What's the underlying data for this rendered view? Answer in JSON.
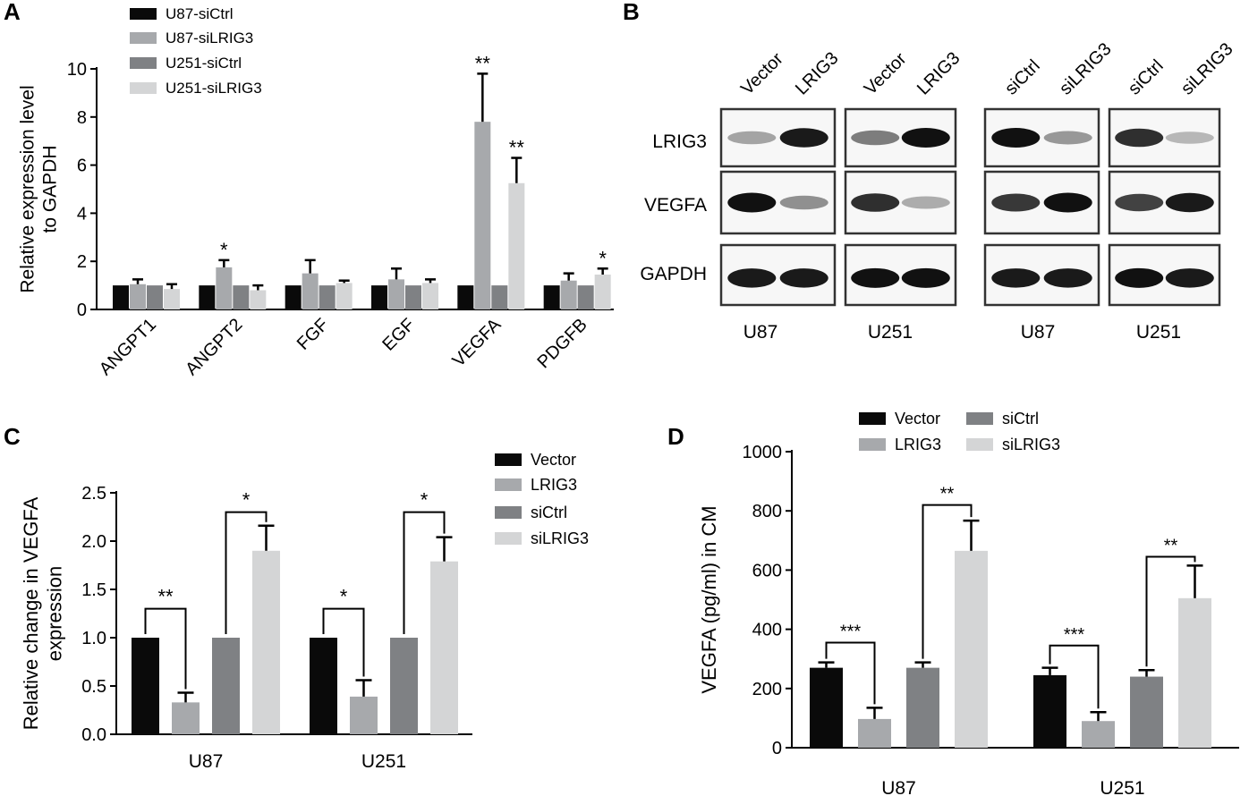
{
  "colors": {
    "black": "#0a0a0a",
    "gray": "#a7a9ac",
    "darkgray": "#7f8184",
    "lightgray": "#d4d5d6"
  },
  "panels": [
    {
      "id": "A",
      "label": "A"
    },
    {
      "id": "B",
      "label": "B"
    },
    {
      "id": "C",
      "label": "C"
    },
    {
      "id": "D",
      "label": "D"
    }
  ],
  "blot": {
    "lanes": [
      [
        "Vector",
        "LRIG3"
      ],
      [
        "Vector",
        "LRIG3"
      ],
      [
        "siCtrl",
        "siLRIG3"
      ],
      [
        "siCtrl",
        "siLRIG3"
      ]
    ],
    "rows": [
      "LRIG3",
      "VEGFA",
      "GAPDH"
    ],
    "groups": [
      "U87",
      "U251",
      "U87",
      "U251"
    ],
    "band_intensity": [
      [
        [
          0.25,
          0.95
        ],
        [
          0.45,
          1.0
        ],
        [
          1.0,
          0.3
        ],
        [
          0.85,
          0.15
        ]
      ],
      [
        [
          1.0,
          0.35
        ],
        [
          0.85,
          0.2
        ],
        [
          0.8,
          1.0
        ],
        [
          0.75,
          0.95
        ]
      ],
      [
        [
          0.95,
          0.95
        ],
        [
          1.0,
          1.0
        ],
        [
          0.95,
          0.95
        ],
        [
          1.0,
          0.95
        ]
      ]
    ]
  },
  "chart_data": [
    {
      "panel": "A",
      "type": "bar",
      "ylabel": "Relative expression level\nto GAPDH",
      "ylim": [
        0,
        10
      ],
      "yticks": [
        0,
        2,
        4,
        6,
        8,
        10
      ],
      "categories": [
        "ANGPT1",
        "ANGPT2",
        "FGF",
        "EGF",
        "VEGFA",
        "PDGFB"
      ],
      "series": [
        {
          "name": "U87-siCtrl",
          "color": "#0a0a0a",
          "values": [
            1.0,
            1.0,
            1.0,
            1.0,
            1.0,
            1.0
          ],
          "errors": [
            0,
            0,
            0,
            0,
            0,
            0
          ]
        },
        {
          "name": "U87-siLRIG3",
          "color": "#a7a9ac",
          "values": [
            1.05,
            1.75,
            1.5,
            1.25,
            7.8,
            1.2
          ],
          "errors": [
            0.2,
            0.3,
            0.55,
            0.45,
            2.0,
            0.3
          ]
        },
        {
          "name": "U251-siCtrl",
          "color": "#7f8184",
          "values": [
            1.0,
            1.0,
            1.0,
            1.0,
            1.0,
            1.0
          ],
          "errors": [
            0,
            0,
            0,
            0,
            0,
            0
          ]
        },
        {
          "name": "U251-siLRIG3",
          "color": "#d4d5d6",
          "values": [
            0.85,
            0.8,
            1.1,
            1.1,
            5.25,
            1.45
          ],
          "errors": [
            0.2,
            0.2,
            0.1,
            0.15,
            1.05,
            0.25
          ]
        }
      ],
      "annotations": [
        {
          "category": 1,
          "series": 1,
          "text": "*"
        },
        {
          "category": 4,
          "series": 1,
          "text": "**"
        },
        {
          "category": 4,
          "series": 3,
          "text": "**"
        },
        {
          "category": 5,
          "series": 3,
          "text": "*"
        }
      ],
      "legend_position": "top-left"
    },
    {
      "panel": "C",
      "type": "bar",
      "ylabel": "Relative change in VEGFA\nexpression",
      "ylim": [
        0,
        2.5
      ],
      "yticks": [
        "0.0",
        "0.5",
        "1.0",
        "1.5",
        "2.0",
        "2.5"
      ],
      "categories": [
        "U87",
        "U251"
      ],
      "series": [
        {
          "name": "Vector",
          "color": "#0a0a0a",
          "values": [
            1.0,
            1.0
          ],
          "errors": [
            0,
            0
          ]
        },
        {
          "name": "LRIG3",
          "color": "#a7a9ac",
          "values": [
            0.33,
            0.39
          ],
          "errors": [
            0.1,
            0.17
          ]
        },
        {
          "name": "siCtrl",
          "color": "#7f8184",
          "values": [
            1.0,
            1.0
          ],
          "errors": [
            0,
            0
          ]
        },
        {
          "name": "siLRIG3",
          "color": "#d4d5d6",
          "values": [
            1.9,
            1.79
          ],
          "errors": [
            0.26,
            0.25
          ]
        }
      ],
      "brackets": [
        {
          "category": 0,
          "from": 0,
          "to": 1,
          "y": 1.3,
          "text": "**"
        },
        {
          "category": 0,
          "from": 2,
          "to": 3,
          "y": 2.3,
          "text": "*"
        },
        {
          "category": 1,
          "from": 0,
          "to": 1,
          "y": 1.3,
          "text": "*"
        },
        {
          "category": 1,
          "from": 2,
          "to": 3,
          "y": 2.3,
          "text": "*"
        }
      ],
      "legend_position": "right"
    },
    {
      "panel": "D",
      "type": "bar",
      "ylabel": "VEGFA (pg/ml) in CM",
      "ylim": [
        0,
        1000
      ],
      "yticks": [
        0,
        200,
        400,
        600,
        800,
        1000
      ],
      "categories": [
        "U87",
        "U251"
      ],
      "series": [
        {
          "name": "Vector",
          "color": "#0a0a0a",
          "values": [
            270,
            245
          ],
          "errors": [
            18,
            25
          ]
        },
        {
          "name": "LRIG3",
          "color": "#a7a9ac",
          "values": [
            97,
            90
          ],
          "errors": [
            38,
            30
          ]
        },
        {
          "name": "siCtrl",
          "color": "#7f8184",
          "values": [
            270,
            240
          ],
          "errors": [
            18,
            22
          ]
        },
        {
          "name": "siLRIG3",
          "color": "#d4d5d6",
          "values": [
            665,
            505
          ],
          "errors": [
            102,
            110
          ]
        }
      ],
      "brackets": [
        {
          "category": 0,
          "from": 0,
          "to": 1,
          "y": 355,
          "text": "***"
        },
        {
          "category": 0,
          "from": 2,
          "to": 3,
          "y": 820,
          "text": "**"
        },
        {
          "category": 1,
          "from": 0,
          "to": 1,
          "y": 345,
          "text": "***"
        },
        {
          "category": 1,
          "from": 2,
          "to": 3,
          "y": 645,
          "text": "**"
        }
      ],
      "legend_position": "top"
    }
  ]
}
